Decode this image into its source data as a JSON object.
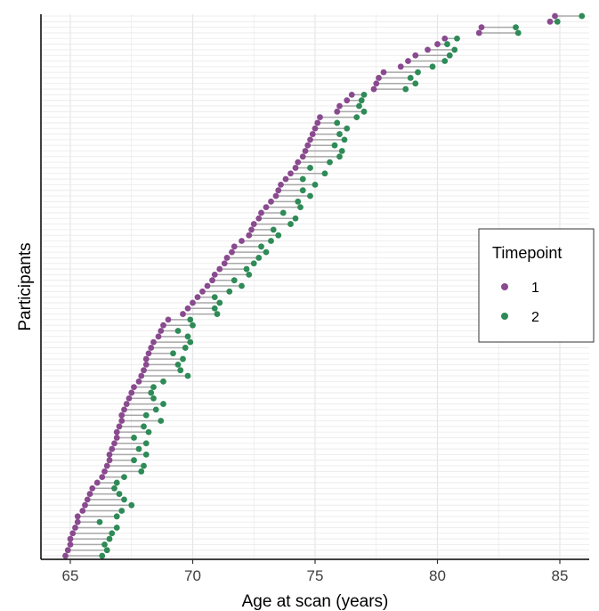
{
  "chart_data": {
    "type": "dumbbell",
    "title": "",
    "xlabel": "Age at scan (years)",
    "ylabel": "Participants",
    "xlim": [
      63.8,
      86.2
    ],
    "xticks": [
      65,
      70,
      75,
      80,
      85
    ],
    "xtick_labels": [
      "65",
      "70",
      "75",
      "80",
      "85"
    ],
    "grid": true,
    "legend": {
      "title": "Timepoint",
      "position": "right",
      "entries": [
        {
          "label": "1",
          "color": "#8a4a8f"
        },
        {
          "label": "2",
          "color": "#2e8b57"
        }
      ]
    },
    "series": [
      {
        "name": "1",
        "color": "#8a4a8f"
      },
      {
        "name": "2",
        "color": "#2e8b57"
      }
    ],
    "participants": [
      {
        "t1": 64.8,
        "t2": 66.3
      },
      {
        "t1": 64.9,
        "t2": 66.5
      },
      {
        "t1": 65.0,
        "t2": 66.4
      },
      {
        "t1": 65.0,
        "t2": 66.6
      },
      {
        "t1": 65.1,
        "t2": 66.7
      },
      {
        "t1": 65.2,
        "t2": 66.9
      },
      {
        "t1": 65.3,
        "t2": 66.2
      },
      {
        "t1": 65.3,
        "t2": 66.9
      },
      {
        "t1": 65.5,
        "t2": 67.1
      },
      {
        "t1": 65.6,
        "t2": 67.5
      },
      {
        "t1": 65.7,
        "t2": 67.2
      },
      {
        "t1": 65.8,
        "t2": 67.0
      },
      {
        "t1": 65.9,
        "t2": 66.8
      },
      {
        "t1": 66.1,
        "t2": 66.9
      },
      {
        "t1": 66.3,
        "t2": 67.2
      },
      {
        "t1": 66.4,
        "t2": 67.9
      },
      {
        "t1": 66.5,
        "t2": 68.0
      },
      {
        "t1": 66.6,
        "t2": 67.6
      },
      {
        "t1": 66.6,
        "t2": 68.1
      },
      {
        "t1": 66.7,
        "t2": 67.8
      },
      {
        "t1": 66.8,
        "t2": 68.1
      },
      {
        "t1": 66.9,
        "t2": 67.6
      },
      {
        "t1": 66.9,
        "t2": 68.2
      },
      {
        "t1": 67.0,
        "t2": 68.0
      },
      {
        "t1": 67.1,
        "t2": 68.7
      },
      {
        "t1": 67.1,
        "t2": 68.1
      },
      {
        "t1": 67.2,
        "t2": 68.5
      },
      {
        "t1": 67.3,
        "t2": 68.8
      },
      {
        "t1": 67.4,
        "t2": 68.4
      },
      {
        "t1": 67.5,
        "t2": 68.3
      },
      {
        "t1": 67.6,
        "t2": 68.4
      },
      {
        "t1": 67.8,
        "t2": 68.8
      },
      {
        "t1": 67.9,
        "t2": 69.8
      },
      {
        "t1": 68.0,
        "t2": 69.5
      },
      {
        "t1": 68.1,
        "t2": 69.4
      },
      {
        "t1": 68.1,
        "t2": 69.6
      },
      {
        "t1": 68.2,
        "t2": 69.2
      },
      {
        "t1": 68.3,
        "t2": 69.7
      },
      {
        "t1": 68.4,
        "t2": 69.9
      },
      {
        "t1": 68.6,
        "t2": 69.8
      },
      {
        "t1": 68.7,
        "t2": 69.4
      },
      {
        "t1": 68.8,
        "t2": 70.0
      },
      {
        "t1": 69.0,
        "t2": 69.9
      },
      {
        "t1": 69.6,
        "t2": 71.0
      },
      {
        "t1": 69.8,
        "t2": 70.9
      },
      {
        "t1": 70.0,
        "t2": 71.1
      },
      {
        "t1": 70.2,
        "t2": 70.9
      },
      {
        "t1": 70.4,
        "t2": 71.5
      },
      {
        "t1": 70.6,
        "t2": 72.0
      },
      {
        "t1": 70.8,
        "t2": 71.7
      },
      {
        "t1": 70.9,
        "t2": 72.3
      },
      {
        "t1": 71.1,
        "t2": 72.2
      },
      {
        "t1": 71.3,
        "t2": 72.5
      },
      {
        "t1": 71.4,
        "t2": 72.7
      },
      {
        "t1": 71.6,
        "t2": 73.0
      },
      {
        "t1": 71.7,
        "t2": 72.8
      },
      {
        "t1": 72.0,
        "t2": 73.2
      },
      {
        "t1": 72.3,
        "t2": 73.5
      },
      {
        "t1": 72.4,
        "t2": 73.3
      },
      {
        "t1": 72.5,
        "t2": 74.0
      },
      {
        "t1": 72.7,
        "t2": 74.2
      },
      {
        "t1": 72.8,
        "t2": 73.7
      },
      {
        "t1": 73.0,
        "t2": 74.4
      },
      {
        "t1": 73.2,
        "t2": 74.3
      },
      {
        "t1": 73.4,
        "t2": 74.8
      },
      {
        "t1": 73.5,
        "t2": 74.5
      },
      {
        "t1": 73.6,
        "t2": 75.0
      },
      {
        "t1": 73.8,
        "t2": 74.5
      },
      {
        "t1": 74.0,
        "t2": 75.4
      },
      {
        "t1": 74.2,
        "t2": 74.8
      },
      {
        "t1": 74.3,
        "t2": 75.6
      },
      {
        "t1": 74.5,
        "t2": 76.0
      },
      {
        "t1": 74.6,
        "t2": 76.1
      },
      {
        "t1": 74.7,
        "t2": 75.8
      },
      {
        "t1": 74.8,
        "t2": 76.2
      },
      {
        "t1": 74.9,
        "t2": 76.0
      },
      {
        "t1": 75.0,
        "t2": 76.3
      },
      {
        "t1": 75.1,
        "t2": 75.9
      },
      {
        "t1": 75.2,
        "t2": 76.7
      },
      {
        "t1": 75.9,
        "t2": 77.0
      },
      {
        "t1": 76.0,
        "t2": 76.8
      },
      {
        "t1": 76.3,
        "t2": 76.9
      },
      {
        "t1": 76.5,
        "t2": 77.0
      },
      {
        "t1": 77.4,
        "t2": 78.7
      },
      {
        "t1": 77.5,
        "t2": 79.1
      },
      {
        "t1": 77.6,
        "t2": 78.9
      },
      {
        "t1": 77.8,
        "t2": 79.2
      },
      {
        "t1": 78.5,
        "t2": 79.8
      },
      {
        "t1": 78.8,
        "t2": 80.3
      },
      {
        "t1": 79.1,
        "t2": 80.5
      },
      {
        "t1": 79.6,
        "t2": 80.7
      },
      {
        "t1": 80.0,
        "t2": 80.4
      },
      {
        "t1": 80.3,
        "t2": 80.8
      },
      {
        "t1": 81.7,
        "t2": 83.3
      },
      {
        "t1": 81.8,
        "t2": 83.2
      },
      {
        "t1": 84.6,
        "t2": 84.9
      },
      {
        "t1": 84.8,
        "t2": 85.9
      }
    ]
  }
}
